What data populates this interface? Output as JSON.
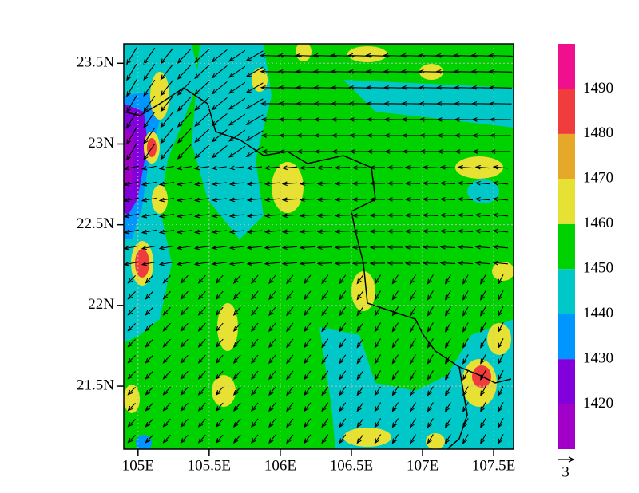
{
  "map": {
    "xlim": [
      104.9,
      107.64
    ],
    "ylim": [
      21.11,
      23.62
    ],
    "xticks": [
      {
        "value": 105,
        "label": "105E"
      },
      {
        "value": 105.5,
        "label": "105.5E"
      },
      {
        "value": 106,
        "label": "106E"
      },
      {
        "value": 106.5,
        "label": "106.5E"
      },
      {
        "value": 107,
        "label": "107E"
      },
      {
        "value": 107.5,
        "label": "107.5E"
      }
    ],
    "yticks": [
      {
        "value": 21.5,
        "label": "21.5N"
      },
      {
        "value": 22,
        "label": "22N"
      },
      {
        "value": 22.5,
        "label": "22.5N"
      },
      {
        "value": 23,
        "label": "23N"
      },
      {
        "value": 23.5,
        "label": "23.5N"
      }
    ],
    "grid": true,
    "colorbar": {
      "levels": [
        1420,
        1430,
        1440,
        1450,
        1460,
        1470,
        1480,
        1490
      ],
      "colors": [
        "#a000c8",
        "#8200dc",
        "#0096ff",
        "#00c8c8",
        "#00d200",
        "#e6e132",
        "#e6a828",
        "#f03c3c",
        "#f00f8c"
      ]
    },
    "reference_vector": 3
  }
}
